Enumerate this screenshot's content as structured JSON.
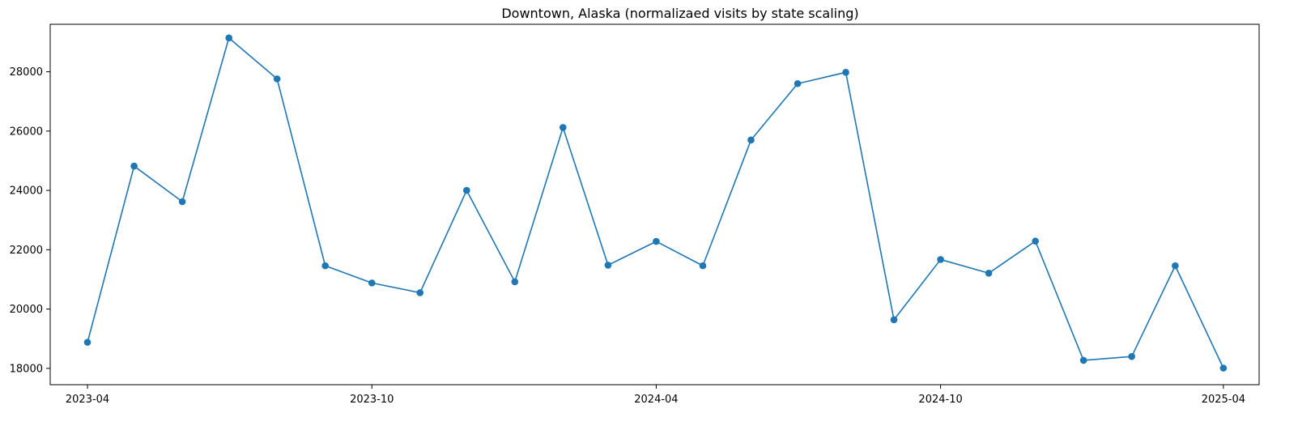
{
  "chart_data": {
    "type": "line",
    "title": "Downtown, Alaska (normalizaed visits by state scaling)",
    "xlabel": "",
    "ylabel": "",
    "x_axis": "date",
    "xlim": [
      "2023-03-08",
      "2025-04-24"
    ],
    "ylim": [
      17450,
      29600
    ],
    "x_ticks": [
      "2023-04-01",
      "2023-10-01",
      "2024-04-01",
      "2024-10-01",
      "2025-04-01"
    ],
    "x_tick_labels": [
      "2023-04",
      "2023-10",
      "2024-04",
      "2024-10",
      "2025-04"
    ],
    "y_ticks": [
      18000,
      20000,
      22000,
      24000,
      26000,
      28000
    ],
    "y_tick_labels": [
      "18000",
      "20000",
      "22000",
      "24000",
      "26000",
      "28000"
    ],
    "grid": false,
    "legend": "none",
    "series": [
      {
        "color": "#1f77b4",
        "marker": "circle",
        "x": [
          "2023-04-01",
          "2023-05-01",
          "2023-06-01",
          "2023-07-01",
          "2023-08-01",
          "2023-09-01",
          "2023-10-01",
          "2023-11-01",
          "2023-12-01",
          "2024-01-01",
          "2024-02-01",
          "2024-03-01",
          "2024-04-01",
          "2024-05-01",
          "2024-06-01",
          "2024-07-01",
          "2024-08-01",
          "2024-09-01",
          "2024-10-01",
          "2024-11-01",
          "2024-12-01",
          "2025-01-01",
          "2025-02-01",
          "2025-03-01",
          "2025-04-01"
        ],
        "y": [
          18880,
          24820,
          23620,
          29140,
          27760,
          21460,
          20880,
          20550,
          24000,
          20920,
          26120,
          21480,
          22280,
          21460,
          25700,
          27600,
          27980,
          19640,
          21670,
          21210,
          22290,
          18270,
          18400,
          21460,
          18010
        ]
      }
    ]
  }
}
